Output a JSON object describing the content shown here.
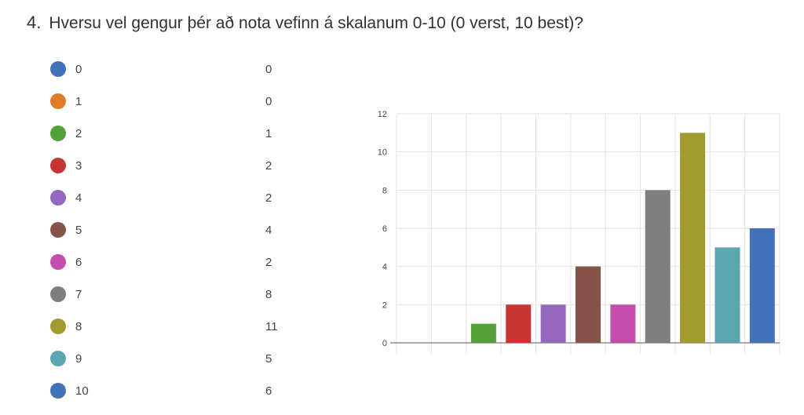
{
  "question": {
    "number": "4.",
    "text": "Hversu vel gengur þér að nota vefinn á skalanum 0-10 (0 verst, 10 best)?"
  },
  "legend": [
    {
      "label": "0",
      "count": "0",
      "color": "#4472b9"
    },
    {
      "label": "1",
      "count": "0",
      "color": "#e07b2a"
    },
    {
      "label": "2",
      "count": "1",
      "color": "#55a038"
    },
    {
      "label": "3",
      "count": "2",
      "color": "#c83333"
    },
    {
      "label": "4",
      "count": "2",
      "color": "#9569be"
    },
    {
      "label": "5",
      "count": "4",
      "color": "#845449"
    },
    {
      "label": "6",
      "count": "2",
      "color": "#c54eac"
    },
    {
      "label": "7",
      "count": "8",
      "color": "#7f7f7f"
    },
    {
      "label": "8",
      "count": "11",
      "color": "#a19a2e"
    },
    {
      "label": "9",
      "count": "5",
      "color": "#5ba6b1"
    },
    {
      "label": "10",
      "count": "6",
      "color": "#4472b9"
    }
  ],
  "chart_data": {
    "type": "bar",
    "categories": [
      "0",
      "1",
      "2",
      "3",
      "4",
      "5",
      "6",
      "7",
      "8",
      "9",
      "10"
    ],
    "values": [
      0,
      0,
      1,
      2,
      2,
      4,
      2,
      8,
      11,
      5,
      6
    ],
    "colors": [
      "#4472b9",
      "#e07b2a",
      "#55a038",
      "#c83333",
      "#9569be",
      "#845449",
      "#c54eac",
      "#7f7f7f",
      "#a19a2e",
      "#5ba6b1",
      "#4472b9"
    ],
    "title": "",
    "xlabel": "",
    "ylabel": "",
    "ylim": [
      0,
      12
    ],
    "yticks": [
      "0",
      "2",
      "4",
      "6",
      "8",
      "10",
      "12"
    ],
    "grid": true,
    "legend": "left"
  }
}
